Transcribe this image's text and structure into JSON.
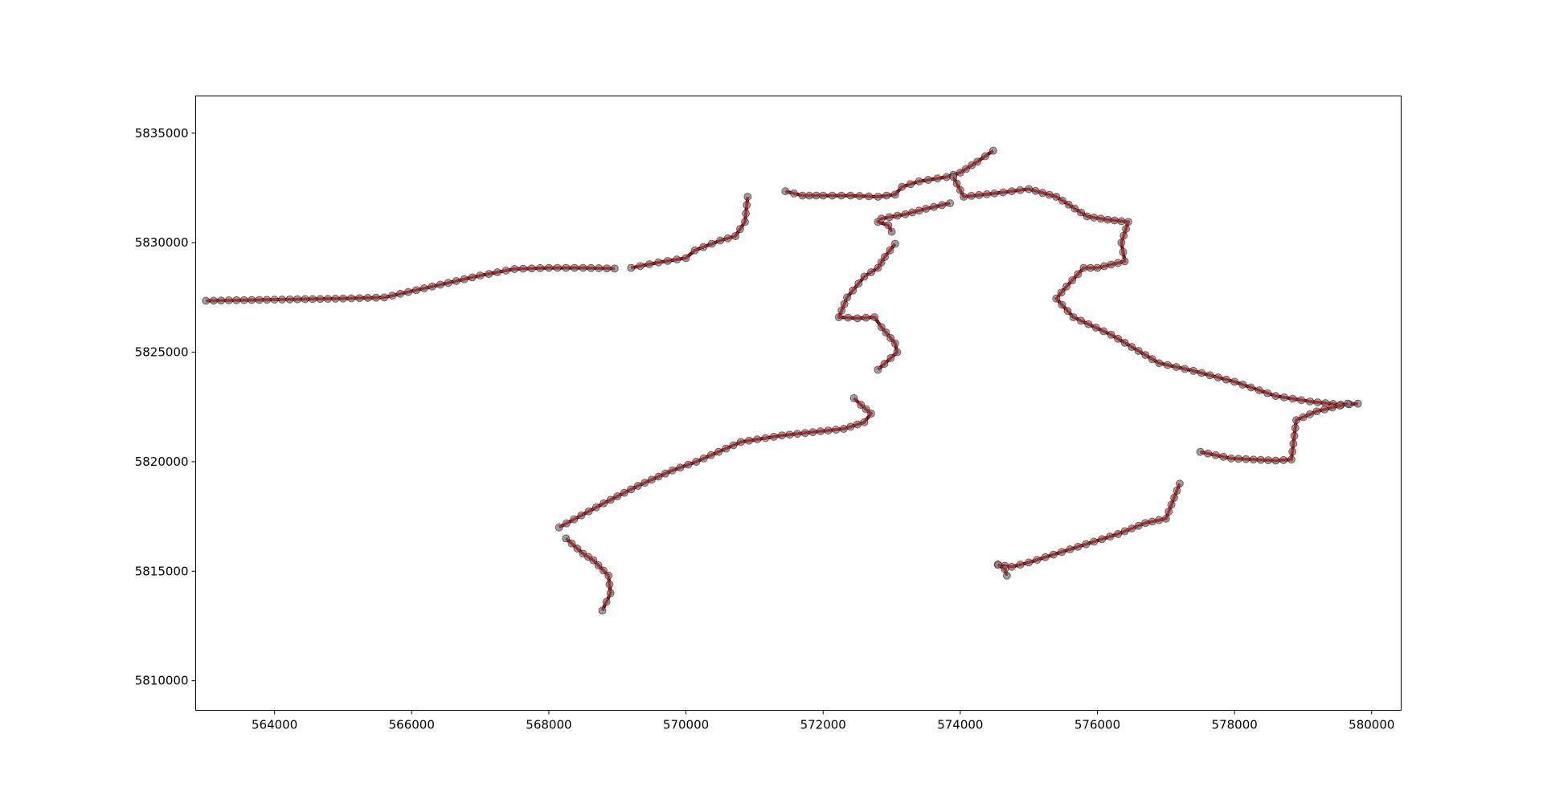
{
  "chart_data": {
    "type": "line",
    "title": "",
    "xlabel": "",
    "ylabel": "",
    "xlim": [
      562850,
      580430
    ],
    "ylim": [
      5808650,
      5836700
    ],
    "xticks": [
      564000,
      566000,
      568000,
      570000,
      572000,
      574000,
      576000,
      578000,
      580000
    ],
    "yticks": [
      5810000,
      5815000,
      5820000,
      5825000,
      5830000,
      5835000
    ],
    "xtick_labels": [
      "564000",
      "566000",
      "568000",
      "570000",
      "572000",
      "574000",
      "576000",
      "578000",
      "580000"
    ],
    "ytick_labels": [
      "5810000",
      "5815000",
      "5820000",
      "5825000",
      "5830000",
      "5835000"
    ],
    "grid": false,
    "colors": {
      "line": "#ff0000",
      "marker_fill": "#808080",
      "marker_edge": "#000000",
      "frame": "#000000"
    },
    "series": [
      {
        "x": [
          563000,
          564000,
          565000,
          565600,
          566300,
          567000,
          567500,
          568000,
          568500,
          568960
        ],
        "y": [
          5827350,
          5827400,
          5827450,
          5827500,
          5828000,
          5828500,
          5828800,
          5828850,
          5828850,
          5828820
        ]
      },
      {
        "x": [
          569200,
          569600,
          570000,
          570130,
          570500,
          570720,
          570860,
          570900
        ],
        "y": [
          5828850,
          5829100,
          5829300,
          5829650,
          5830100,
          5830300,
          5830950,
          5832100
        ]
      },
      {
        "x": [
          571450,
          571700,
          572000,
          572400,
          572800,
          573050,
          573150,
          573400,
          573800,
          574000,
          574250,
          574480
        ],
        "y": [
          5832350,
          5832150,
          5832150,
          5832150,
          5832100,
          5832200,
          5832550,
          5832800,
          5833000,
          5833200,
          5833700,
          5834200
        ]
      },
      {
        "x": [
          573900,
          574050,
          574500,
          575000,
          575400,
          575850,
          576150,
          576450,
          576350,
          576400,
          576000,
          575800,
          575550,
          575400,
          575650,
          576200,
          576900,
          577400,
          578000,
          578600,
          579100,
          579550,
          579800
        ],
        "y": [
          5833000,
          5832100,
          5832250,
          5832450,
          5832100,
          5831200,
          5831050,
          5830950,
          5830000,
          5829150,
          5828850,
          5828850,
          5828000,
          5827450,
          5826600,
          5825800,
          5824500,
          5824150,
          5823650,
          5823000,
          5822750,
          5822600,
          5822650
        ]
      },
      {
        "x": [
          579650,
          579200,
          578900,
          578830,
          578600,
          577950,
          577500
        ],
        "y": [
          5822650,
          5822300,
          5821900,
          5820100,
          5820050,
          5820150,
          5820450
        ]
      },
      {
        "x": [
          577200,
          577000,
          576700,
          576300,
          575600,
          575000,
          574750,
          574550
        ],
        "y": [
          5819000,
          5817400,
          5817200,
          5816700,
          5816000,
          5815400,
          5815200,
          5815300
        ]
      },
      {
        "x": [
          574550,
          574650,
          574680
        ],
        "y": [
          5815300,
          5815100,
          5814800
        ]
      },
      {
        "x": [
          573050,
          572900,
          572800,
          572600,
          572350,
          572230,
          572500,
          572750,
          572850,
          573050,
          573080,
          572800
        ],
        "y": [
          5829950,
          5829350,
          5828850,
          5828450,
          5827500,
          5826600,
          5826550,
          5826600,
          5826150,
          5825400,
          5825000,
          5824200
        ]
      },
      {
        "x": [
          573000,
          572950,
          572800,
          572850,
          573200,
          573500,
          573850
        ],
        "y": [
          5830500,
          5830800,
          5830950,
          5831100,
          5831300,
          5831550,
          5831800
        ]
      },
      {
        "x": [
          572450,
          572550,
          572700,
          572600,
          572300,
          571400,
          570800,
          570150,
          569800,
          569300,
          568800,
          568150
        ],
        "y": [
          5822900,
          5822600,
          5822200,
          5821800,
          5821500,
          5821200,
          5820900,
          5820000,
          5819600,
          5818900,
          5818100,
          5817000
        ]
      },
      {
        "x": [
          568250,
          568500,
          568650,
          568870,
          568900,
          568780
        ],
        "y": [
          5816500,
          5815800,
          5815500,
          5814800,
          5814000,
          5813200
        ]
      }
    ]
  }
}
